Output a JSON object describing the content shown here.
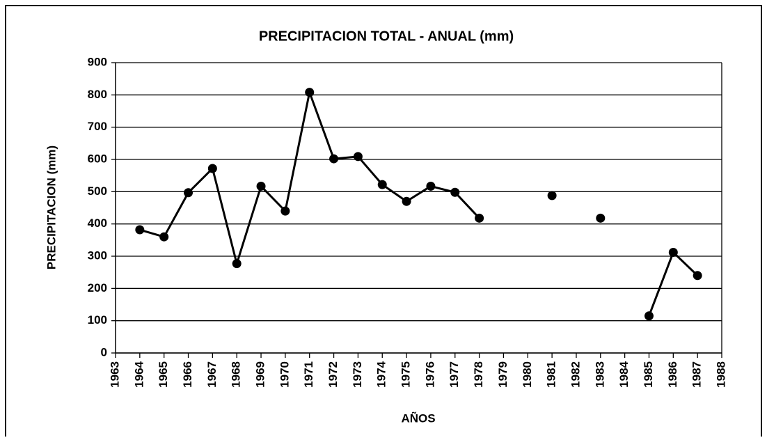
{
  "chart_data": {
    "type": "line",
    "title": "PRECIPITACION TOTAL - ANUAL (mm)",
    "x_label": "AÑOS",
    "y_label": "PRECIPITACION (mm)",
    "x": [
      1964,
      1965,
      1966,
      1967,
      1968,
      1969,
      1970,
      1971,
      1972,
      1973,
      1974,
      1975,
      1976,
      1977,
      1978,
      1979,
      1980,
      1981,
      1982,
      1983,
      1984,
      1985,
      1986,
      1987
    ],
    "values": [
      382,
      360,
      497,
      572,
      277,
      517,
      440,
      808,
      602,
      609,
      522,
      470,
      517,
      498,
      418,
      null,
      null,
      488,
      null,
      418,
      null,
      115,
      312,
      240
    ],
    "color": "#000000",
    "xlim": [
      1963,
      1988
    ],
    "xticks": [
      1963,
      1964,
      1965,
      1966,
      1967,
      1968,
      1969,
      1970,
      1971,
      1972,
      1973,
      1974,
      1975,
      1976,
      1977,
      1978,
      1979,
      1980,
      1981,
      1982,
      1983,
      1984,
      1985,
      1986,
      1987,
      1988
    ],
    "ylim": [
      0,
      900
    ],
    "yticks": [
      0,
      100,
      200,
      300,
      400,
      500,
      600,
      700,
      800,
      900
    ],
    "grid": true
  }
}
